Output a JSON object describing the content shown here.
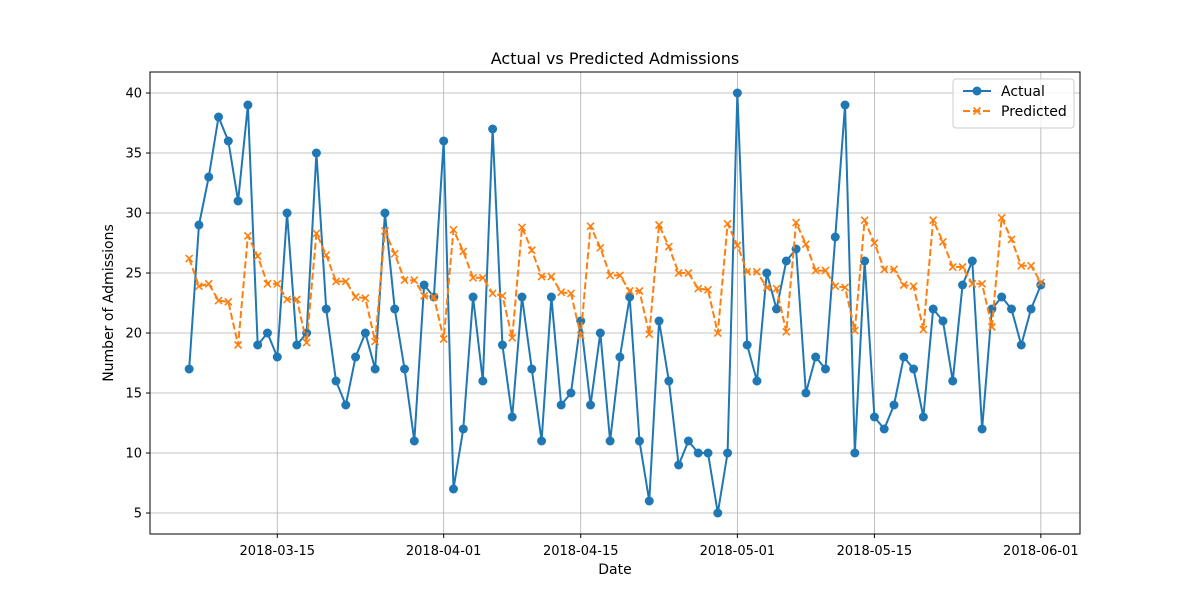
{
  "chart_data": {
    "type": "line",
    "title": "Actual vs Predicted Admissions",
    "xlabel": "Date",
    "ylabel": "Number of Admissions",
    "x_start": "2018-03-06",
    "x": [
      "2018-03-06",
      "2018-03-07",
      "2018-03-08",
      "2018-03-09",
      "2018-03-10",
      "2018-03-11",
      "2018-03-12",
      "2018-03-13",
      "2018-03-14",
      "2018-03-15",
      "2018-03-16",
      "2018-03-17",
      "2018-03-18",
      "2018-03-19",
      "2018-03-20",
      "2018-03-21",
      "2018-03-22",
      "2018-03-23",
      "2018-03-24",
      "2018-03-25",
      "2018-03-26",
      "2018-03-27",
      "2018-03-28",
      "2018-03-29",
      "2018-03-30",
      "2018-03-31",
      "2018-04-01",
      "2018-04-02",
      "2018-04-03",
      "2018-04-04",
      "2018-04-05",
      "2018-04-06",
      "2018-04-07",
      "2018-04-08",
      "2018-04-09",
      "2018-04-10",
      "2018-04-11",
      "2018-04-12",
      "2018-04-13",
      "2018-04-14",
      "2018-04-15",
      "2018-04-16",
      "2018-04-17",
      "2018-04-18",
      "2018-04-19",
      "2018-04-20",
      "2018-04-21",
      "2018-04-22",
      "2018-04-23",
      "2018-04-24",
      "2018-04-25",
      "2018-04-26",
      "2018-04-27",
      "2018-04-28",
      "2018-04-29",
      "2018-04-30",
      "2018-05-01",
      "2018-05-02",
      "2018-05-03",
      "2018-05-04",
      "2018-05-05",
      "2018-05-06",
      "2018-05-07",
      "2018-05-08",
      "2018-05-09",
      "2018-05-10",
      "2018-05-11",
      "2018-05-12",
      "2018-05-13",
      "2018-05-14",
      "2018-05-15",
      "2018-05-16",
      "2018-05-17",
      "2018-05-18",
      "2018-05-19",
      "2018-05-20",
      "2018-05-21",
      "2018-05-22",
      "2018-05-23",
      "2018-05-24",
      "2018-05-25",
      "2018-05-26",
      "2018-05-27",
      "2018-05-28",
      "2018-05-29",
      "2018-05-30",
      "2018-05-31",
      "2018-06-01"
    ],
    "series": [
      {
        "name": "Actual",
        "color": "#1f77b4",
        "style": "solid",
        "marker": "circle",
        "values": [
          17,
          29,
          33,
          38,
          36,
          31,
          39,
          19,
          20,
          18,
          30,
          19,
          20,
          35,
          22,
          16,
          14,
          18,
          20,
          17,
          30,
          22,
          17,
          11,
          24,
          23,
          36,
          7,
          12,
          23,
          16,
          37,
          19,
          13,
          23,
          17,
          11,
          23,
          14,
          15,
          21,
          14,
          20,
          11,
          18,
          23,
          11,
          6,
          21,
          16,
          9,
          11,
          10,
          10,
          5,
          10,
          40,
          19,
          16,
          25,
          22,
          26,
          27,
          15,
          18,
          17,
          28,
          39,
          10,
          26,
          13,
          12,
          14,
          18,
          17,
          13,
          22,
          21,
          16,
          24,
          26,
          12,
          22,
          23,
          22,
          19,
          22,
          24
        ]
      },
      {
        "name": "Predicted",
        "color": "#ff7f0e",
        "style": "dashed",
        "marker": "x",
        "values": [
          26.2,
          23.9,
          24.1,
          22.7,
          22.6,
          19.0,
          28.1,
          26.4,
          24.1,
          24.1,
          22.8,
          22.8,
          19.2,
          28.3,
          26.5,
          24.3,
          24.3,
          23.0,
          22.9,
          19.3,
          28.5,
          26.6,
          24.4,
          24.4,
          23.1,
          23.0,
          19.5,
          28.6,
          26.8,
          24.6,
          24.6,
          23.3,
          23.1,
          19.6,
          28.8,
          26.9,
          24.7,
          24.7,
          23.4,
          23.3,
          19.8,
          28.9,
          27.1,
          24.8,
          24.8,
          23.5,
          23.5,
          19.9,
          29.0,
          27.2,
          25.0,
          25.0,
          23.7,
          23.6,
          20.0,
          29.1,
          27.3,
          25.1,
          25.1,
          23.8,
          23.7,
          20.1,
          29.2,
          27.4,
          25.2,
          25.2,
          23.9,
          23.8,
          20.2,
          29.4,
          27.5,
          25.3,
          25.3,
          24.0,
          23.9,
          20.3,
          29.4,
          27.6,
          25.5,
          25.5,
          24.1,
          24.1,
          20.5,
          29.6,
          27.8,
          25.6,
          25.6,
          24.2
        ]
      }
    ],
    "x_ticks": [
      "2018-03-15",
      "2018-04-01",
      "2018-04-15",
      "2018-05-01",
      "2018-05-15",
      "2018-06-01"
    ],
    "y_ticks": [
      "5",
      "10",
      "15",
      "20",
      "25",
      "30",
      "35",
      "40"
    ],
    "ylim": [
      3.25,
      41.75
    ],
    "xlim": [
      "2018-03-02",
      "2018-06-05"
    ],
    "grid": true,
    "legend": "upper right"
  }
}
